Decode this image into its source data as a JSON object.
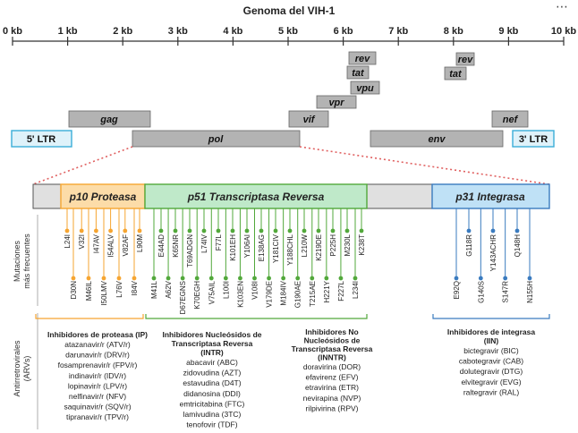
{
  "title": "Genoma del VIH-1",
  "menu_icon": "⋯",
  "axis": {
    "ticks": [
      "0 kb",
      "1 kb",
      "2 kb",
      "3 kb",
      "4 kb",
      "5 kb",
      "6 kb",
      "7 kb",
      "8 kb",
      "9 kb",
      "10 kb"
    ]
  },
  "genes": {
    "rev1": "rev",
    "tat1": "tat",
    "vpu": "vpu",
    "vpr": "vpr",
    "vif": "vif",
    "rev2": "rev",
    "tat2": "tat",
    "nef": "nef",
    "gag": "gag",
    "pol": "pol",
    "env": "env",
    "ltr5": "5' LTR",
    "ltr3": "3' LTR"
  },
  "domains": {
    "protease": "p10 Proteasa",
    "rt": "p51 Transcriptasa Reversa",
    "integrase": "p31 Integrasa"
  },
  "side_labels": {
    "mutations": [
      "Mutaciones",
      "más frecuentes"
    ],
    "arvs": [
      "Antirretrovirales",
      "(ARVs)"
    ]
  },
  "colors": {
    "protease": "#f6a531",
    "rt": "#52a83b",
    "integrase": "#3a7bbf",
    "gray_gene": "#b3b3b3",
    "ltr": "#3aaed8",
    "dotted": "#e06060"
  },
  "mutations": {
    "protease": {
      "top": [
        "L24I",
        "V32I",
        "I47AV",
        "I54ALV",
        "V82AF",
        "L90M"
      ],
      "bottom": [
        "D30N",
        "M46IL",
        "I50LMV",
        "L76V",
        "I84V"
      ]
    },
    "rt": {
      "top": [
        "E44AD",
        "K65NR",
        "T69ADGN",
        "L74IV",
        "F77L",
        "K101EH",
        "Y106AI",
        "E138AG",
        "Y181CIV",
        "Y188CHL",
        "L210W",
        "K219DE",
        "P225H",
        "M230L",
        "K238T"
      ],
      "bottom": [
        "M41L",
        "A62V",
        "D67EGNS",
        "K70EGH",
        "V75AIL",
        "L100I",
        "K103EN",
        "V108I",
        "V179DE",
        "M184IV",
        "G190AE",
        "T215AE",
        "H221Y",
        "F227L",
        "L234I"
      ]
    },
    "integrase": {
      "top": [
        "G118R",
        "Y143ACHR",
        "Q148H"
      ],
      "bottom": [
        "E92Q",
        "G140S",
        "S147R",
        "N155H"
      ]
    }
  },
  "drugs": {
    "ip": {
      "header": [
        "Inhibidores de proteasa (IP)"
      ],
      "list": [
        "atazanavir/r (ATV/r)",
        "darunavir/r (DRV/r)",
        "fosamprenavir/r (FPV/r)",
        "indinavir/r (IDV/r)",
        "lopinavir/r (LPV/r)",
        "nelfinavir/r (NFV)",
        "saquinavir/r (SQV/r)",
        "tipranavir/r (TPV/r)"
      ]
    },
    "intr": {
      "header": [
        "Inhibidores Nucleósidos de",
        "Transcriptasa Reversa",
        "(INTR)"
      ],
      "list": [
        "abacavir (ABC)",
        "zidovudina (AZT)",
        "estavudina (D4T)",
        "didanosina (DDI)",
        "emtricitabina (FTC)",
        "lamivudina (3TC)",
        "tenofovir (TDF)"
      ]
    },
    "innt": {
      "header": [
        "Inhibidores No",
        "Nucleósidos de",
        "Transcriptasa Reversa",
        "(INNTR)"
      ],
      "list": [
        "doravirina (DOR)",
        "efavirenz (EFV)",
        "etravirina (ETR)",
        "nevirapina (NVP)",
        "rilpivirina (RPV)"
      ]
    },
    "iin": {
      "header": [
        "Inhibidores de integrasa",
        "(IIN)"
      ],
      "list": [
        "bictegravir (BIC)",
        "cabotegravir (CAB)",
        "dolutegravir (DTG)",
        "elvitegravir (EVG)",
        "raltegravir (RAL)"
      ]
    }
  }
}
